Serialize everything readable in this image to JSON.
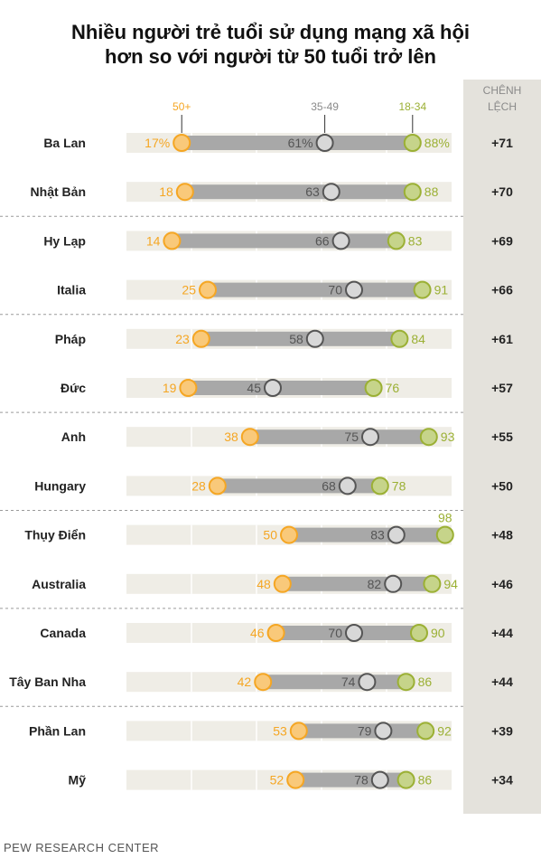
{
  "title_lines": [
    "Nhiều người trẻ tuổi sử dụng mạng xã hội",
    "hơn so với người từ 50 tuổi trở lên"
  ],
  "source": "PEW RESEARCH CENTER",
  "chart_data": {
    "type": "dot",
    "title": "Nhiều người trẻ tuổi sử dụng mạng xã hội hơn so với người từ 50 tuổi trở lên",
    "series": [
      {
        "name": "50+",
        "color": "#f5a623"
      },
      {
        "name": "35-49",
        "color": "#8a8a8a"
      },
      {
        "name": "18-34",
        "color": "#9bb034"
      }
    ],
    "diff_header": [
      "CHÊNH",
      "LỆCH"
    ],
    "xlim": [
      0,
      100
    ],
    "rows": [
      {
        "country": "Ba Lan",
        "a50": 17,
        "a35": 61,
        "a18": 88,
        "diff": "+71",
        "labels": [
          "17%",
          "61%",
          "88%"
        ]
      },
      {
        "country": "Nhật Bản",
        "a50": 18,
        "a35": 63,
        "a18": 88,
        "diff": "+70",
        "labels": [
          "18",
          "63",
          "88"
        ]
      },
      {
        "country": "Hy Lạp",
        "a50": 14,
        "a35": 66,
        "a18": 83,
        "diff": "+69",
        "labels": [
          "14",
          "66",
          "83"
        ]
      },
      {
        "country": "Italia",
        "a50": 25,
        "a35": 70,
        "a18": 91,
        "diff": "+66",
        "labels": [
          "25",
          "70",
          "91"
        ]
      },
      {
        "country": "Pháp",
        "a50": 23,
        "a35": 58,
        "a18": 84,
        "diff": "+61",
        "labels": [
          "23",
          "58",
          "84"
        ]
      },
      {
        "country": "Đức",
        "a50": 19,
        "a35": 45,
        "a18": 76,
        "diff": "+57",
        "labels": [
          "19",
          "45",
          "76"
        ]
      },
      {
        "country": "Anh",
        "a50": 38,
        "a35": 75,
        "a18": 93,
        "diff": "+55",
        "labels": [
          "38",
          "75",
          "93"
        ]
      },
      {
        "country": "Hungary",
        "a50": 28,
        "a35": 68,
        "a18": 78,
        "diff": "+50",
        "labels": [
          "28",
          "68",
          "78"
        ]
      },
      {
        "country": "Thụy Điển",
        "a50": 50,
        "a35": 83,
        "a18": 98,
        "diff": "+48",
        "labels": [
          "50",
          "83",
          "98"
        ]
      },
      {
        "country": "Australia",
        "a50": 48,
        "a35": 82,
        "a18": 94,
        "diff": "+46",
        "labels": [
          "48",
          "82",
          "94"
        ]
      },
      {
        "country": "Canada",
        "a50": 46,
        "a35": 70,
        "a18": 90,
        "diff": "+44",
        "labels": [
          "46",
          "70",
          "90"
        ]
      },
      {
        "country": "Tây Ban Nha",
        "a50": 42,
        "a35": 74,
        "a18": 86,
        "diff": "+44",
        "labels": [
          "42",
          "74",
          "86"
        ]
      },
      {
        "country": "Phần Lan",
        "a50": 53,
        "a35": 79,
        "a18": 92,
        "diff": "+39",
        "labels": [
          "53",
          "79",
          "92"
        ]
      },
      {
        "country": "Mỹ",
        "a50": 52,
        "a35": 78,
        "a18": 86,
        "diff": "+34",
        "labels": [
          "52",
          "78",
          "86"
        ]
      }
    ]
  }
}
